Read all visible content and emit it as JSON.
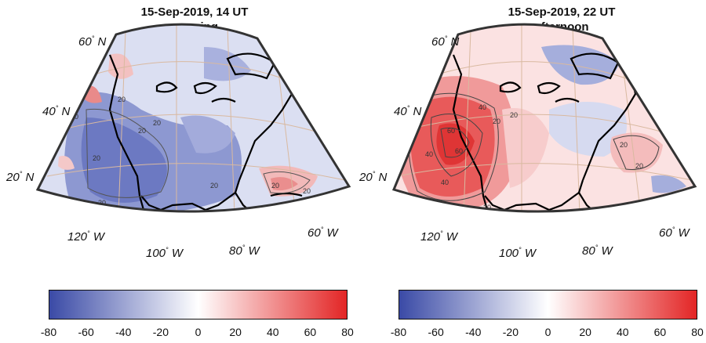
{
  "panels": [
    {
      "title": "15-Sep-2019, 14 UT",
      "subtitle": "morning",
      "lat_labels": [
        {
          "deg": "60",
          "hemi": "N"
        },
        {
          "deg": "40",
          "hemi": "N"
        },
        {
          "deg": "20",
          "hemi": "N"
        }
      ],
      "lon_labels": [
        {
          "deg": "120",
          "hemi": "W"
        },
        {
          "deg": "100",
          "hemi": "W"
        },
        {
          "deg": "80",
          "hemi": "W"
        },
        {
          "deg": "60",
          "hemi": "W"
        }
      ],
      "contour_labels": [
        "20",
        "20",
        "20",
        "20",
        "20",
        "20",
        "20",
        "20",
        "20"
      ],
      "dominant_sign": "negative"
    },
    {
      "title": "15-Sep-2019, 22 UT",
      "subtitle": "afternoon",
      "lat_labels": [
        {
          "deg": "60",
          "hemi": "N"
        },
        {
          "deg": "40",
          "hemi": "N"
        },
        {
          "deg": "20",
          "hemi": "N"
        }
      ],
      "lon_labels": [
        {
          "deg": "120",
          "hemi": "W"
        },
        {
          "deg": "100",
          "hemi": "W"
        },
        {
          "deg": "80",
          "hemi": "W"
        },
        {
          "deg": "60",
          "hemi": "W"
        }
      ],
      "contour_labels": [
        "20",
        "40",
        "60",
        "40",
        "60",
        "40",
        "20",
        "20",
        "20",
        "20"
      ],
      "dominant_sign": "positive"
    }
  ],
  "colorbar": {
    "ticks": [
      "-80",
      "-60",
      "-40",
      "-20",
      "0",
      "20",
      "40",
      "60",
      "80"
    ],
    "range": [
      -80,
      80
    ],
    "colors": {
      "min": "#3a4aa6",
      "mid": "#ffffff",
      "max": "#e32525"
    }
  }
}
